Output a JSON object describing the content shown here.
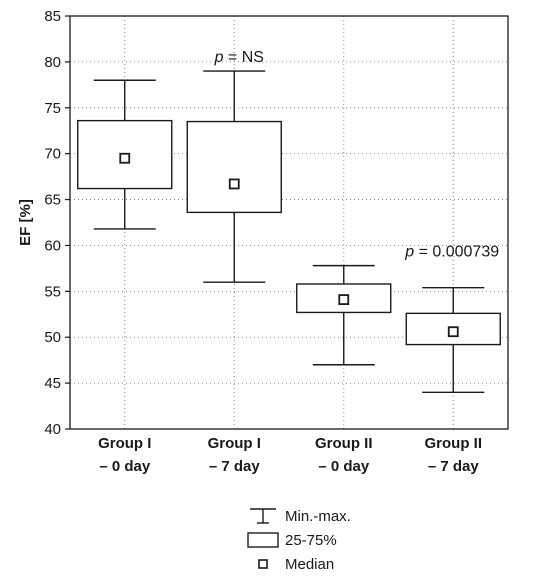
{
  "chart_data": {
    "type": "boxplot",
    "ylabel": "EF [%]",
    "ylim": [
      40,
      85
    ],
    "yticks": [
      40,
      45,
      50,
      55,
      60,
      65,
      70,
      75,
      80,
      85
    ],
    "grid": true,
    "categories": [
      [
        "Group I",
        "– 0 day"
      ],
      [
        "Group I",
        "– 7 day"
      ],
      [
        "Group II",
        "– 0 day"
      ],
      [
        "Group II",
        "– 7 day"
      ]
    ],
    "boxes": [
      {
        "min": 61.8,
        "q1": 66.2,
        "median": 69.5,
        "q3": 73.6,
        "max": 78.0
      },
      {
        "min": 56.0,
        "q1": 63.6,
        "median": 66.7,
        "q3": 73.5,
        "max": 79.0
      },
      {
        "min": 47.0,
        "q1": 52.7,
        "median": 54.1,
        "q3": 55.8,
        "max": 57.8
      },
      {
        "min": 44.0,
        "q1": 49.2,
        "median": 50.6,
        "q3": 52.6,
        "max": 55.4
      }
    ],
    "annotations": [
      {
        "p": "p",
        "rest": " = NS",
        "between": [
          0,
          1
        ]
      },
      {
        "p": "p",
        "rest": " = 0.000739",
        "between": [
          2,
          3
        ]
      }
    ],
    "legend": {
      "placement": "bottom",
      "items": [
        {
          "symbol": "whisker",
          "label": "Min.-max."
        },
        {
          "symbol": "box",
          "label": "25-75%"
        },
        {
          "symbol": "median",
          "label": "Median"
        }
      ]
    }
  }
}
